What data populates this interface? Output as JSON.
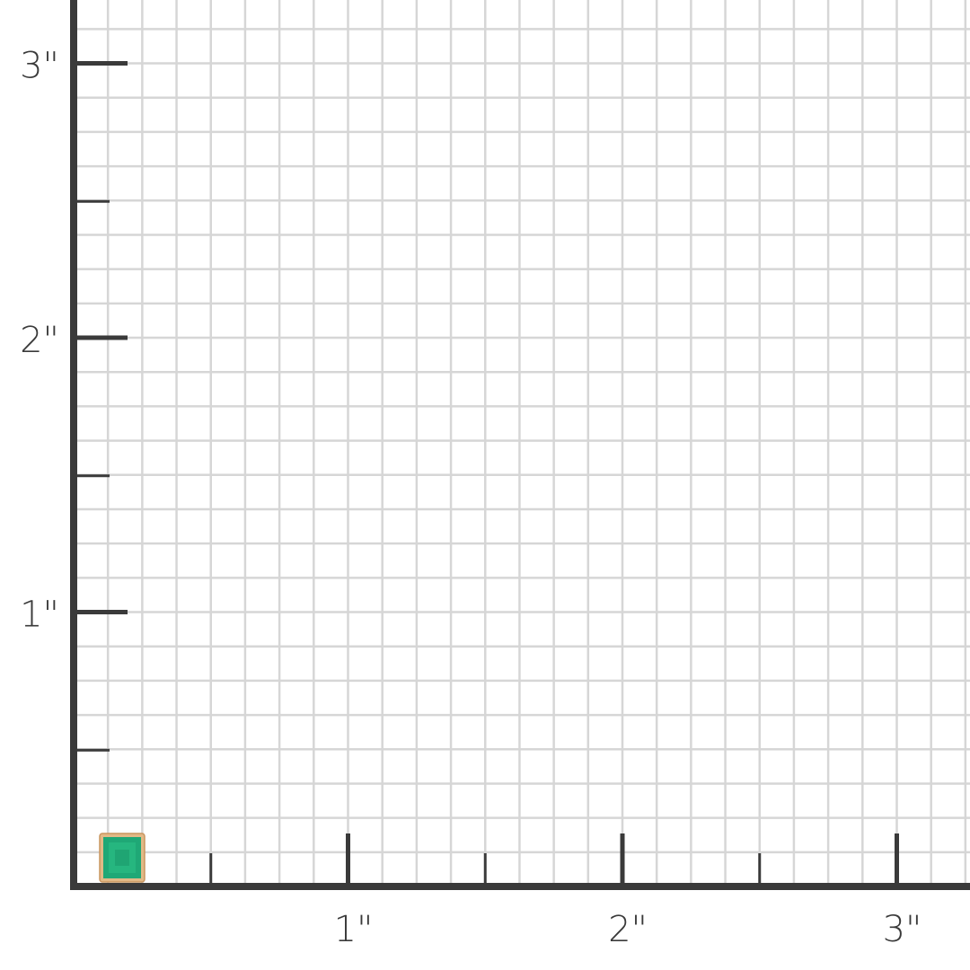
{
  "chart_data": {
    "type": "size-grid",
    "unit": "inch",
    "grid_step": 0.125,
    "x_ticks": [
      {
        "value": 1,
        "label": "1\""
      },
      {
        "value": 2,
        "label": "2\""
      },
      {
        "value": 3,
        "label": "3\""
      }
    ],
    "y_ticks": [
      {
        "value": 1,
        "label": "1\""
      },
      {
        "value": 2,
        "label": "2\""
      },
      {
        "value": 3,
        "label": "3\""
      }
    ],
    "half_ticks": [
      0.5,
      1.5,
      2.5
    ],
    "grid": true,
    "product": {
      "name": "emerald-stud-earring",
      "width_in": 0.17,
      "height_in": 0.18,
      "stone_color": "#1fa876",
      "metal_color": "#e2b987"
    }
  },
  "colors": {
    "axis": "#3a3a3a",
    "grid": "#d6d6d6"
  }
}
